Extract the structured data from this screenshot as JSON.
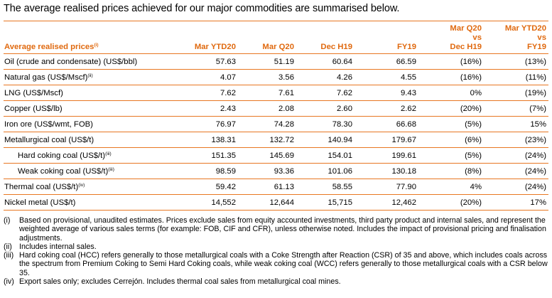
{
  "intro": "The average realised prices achieved for our major commodities are summarised below.",
  "table": {
    "header": {
      "label": "Average realised prices",
      "label_sup": "(i)",
      "cols": [
        "Mar YTD20",
        "Mar Q20",
        "Dec H19",
        "FY19"
      ],
      "cmp1": [
        "Mar Q20",
        "vs",
        "Dec H19"
      ],
      "cmp2": [
        "Mar YTD20",
        "vs",
        "FY19"
      ]
    },
    "rows": [
      {
        "label": "Oil (crude and condensate) (US$/bbl)",
        "sup": "",
        "indent": false,
        "values": [
          "57.63",
          "51.19",
          "60.64",
          "66.59",
          "(16%)",
          "(13%)"
        ]
      },
      {
        "label": "Natural gas (US$/Mscf)",
        "sup": "(ii)",
        "indent": false,
        "values": [
          "4.07",
          "3.56",
          "4.26",
          "4.55",
          "(16%)",
          "(11%)"
        ]
      },
      {
        "label": "LNG (US$/Mscf)",
        "sup": "",
        "indent": false,
        "values": [
          "7.62",
          "7.61",
          "7.62",
          "9.43",
          "0%",
          "(19%)"
        ]
      },
      {
        "label": "Copper (US$/lb)",
        "sup": "",
        "indent": false,
        "values": [
          "2.43",
          "2.08",
          "2.60",
          "2.62",
          "(20%)",
          "(7%)"
        ]
      },
      {
        "label": "Iron ore (US$/wmt, FOB)",
        "sup": "",
        "indent": false,
        "values": [
          "76.97",
          "74.28",
          "78.30",
          "66.68",
          "(5%)",
          "15%"
        ]
      },
      {
        "label": "Metallurgical coal (US$/t)",
        "sup": "",
        "indent": false,
        "values": [
          "138.31",
          "132.72",
          "140.94",
          "179.67",
          "(6%)",
          "(23%)"
        ]
      },
      {
        "label": "Hard coking coal (US$/t)",
        "sup": "(iii)",
        "indent": true,
        "values": [
          "151.35",
          "145.69",
          "154.01",
          "199.61",
          "(5%)",
          "(24%)"
        ]
      },
      {
        "label": "Weak coking coal (US$/t)",
        "sup": "(iii)",
        "indent": true,
        "values": [
          "98.59",
          "93.36",
          "101.06",
          "130.18",
          "(8%)",
          "(24%)"
        ]
      },
      {
        "label": "Thermal coal (US$/t)",
        "sup": "(iv)",
        "indent": false,
        "values": [
          "59.42",
          "61.13",
          "58.55",
          "77.90",
          "4%",
          "(24%)"
        ]
      },
      {
        "label": "Nickel metal (US$/t)",
        "sup": "",
        "indent": false,
        "values": [
          "14,552",
          "12,644",
          "15,715",
          "12,462",
          "(20%)",
          "17%"
        ]
      }
    ]
  },
  "notes": [
    {
      "marker": "(i)",
      "text": "Based on provisional, unaudited estimates. Prices exclude sales from equity accounted investments, third party product and internal sales, and represent the weighted average of various sales terms (for example: FOB, CIF and CFR), unless otherwise noted. Includes the impact of provisional pricing and finalisation adjustments."
    },
    {
      "marker": "(ii)",
      "text": "Includes internal sales."
    },
    {
      "marker": "(iii)",
      "text": "Hard coking coal (HCC) refers generally to those metallurgical coals with a Coke Strength after Reaction (CSR) of 35 and above, which includes coals across the spectrum from Premium Coking to Semi Hard Coking coals, while weak coking coal (WCC) refers generally to those metallurgical coals with a CSR below 35."
    },
    {
      "marker": "(iv)",
      "text": "Export sales only; excludes Cerrejón. Includes thermal coal sales from metallurgical coal mines."
    }
  ],
  "colors": {
    "accent": "#e87722",
    "header_text": "#e06a10"
  }
}
